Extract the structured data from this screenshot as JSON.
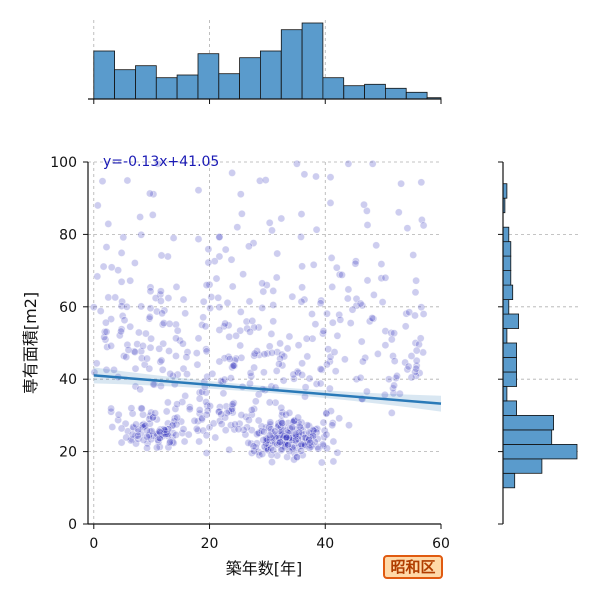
{
  "ward_label": "昭和区",
  "chart_data": {
    "type": "scatter",
    "title": "",
    "xlabel": "築年数[年]",
    "ylabel": "専有面積[m2]",
    "xlim": [
      -1,
      60
    ],
    "ylim": [
      0,
      100
    ],
    "xticks": [
      0,
      20,
      40,
      60
    ],
    "yticks": [
      0,
      20,
      40,
      60,
      80,
      100
    ],
    "grid": true,
    "point_color": "#1a1ab5",
    "bar_color": "#5a9bcc",
    "line_color": "#2a7ab8",
    "regression": {
      "slope": -0.13,
      "intercept": 41.05,
      "label": "y=-0.13x+41.05"
    },
    "marginal_x": {
      "type": "histogram",
      "bin_edges": [
        0,
        3.6,
        7.2,
        10.8,
        14.4,
        18,
        21.6,
        25.2,
        28.8,
        32.4,
        36,
        39.6,
        43.2,
        46.8,
        50.4,
        54,
        57.6,
        60
      ],
      "counts": [
        36,
        22,
        25,
        16,
        18,
        34,
        19,
        31,
        36,
        52,
        57,
        16,
        10,
        11,
        8,
        5,
        1
      ]
    },
    "marginal_y": {
      "type": "histogram",
      "bin_edges": [
        10,
        14,
        18,
        22,
        26,
        30,
        34,
        38,
        42,
        46,
        50,
        54,
        58,
        62,
        66,
        70,
        74,
        78,
        82,
        86,
        90,
        94,
        98
      ],
      "counts": [
        6,
        20,
        38,
        25,
        26,
        7,
        2,
        7,
        7,
        7,
        2,
        8,
        3,
        5,
        4,
        4,
        4,
        3,
        0,
        1,
        2,
        0,
        0
      ]
    },
    "points": []
  }
}
